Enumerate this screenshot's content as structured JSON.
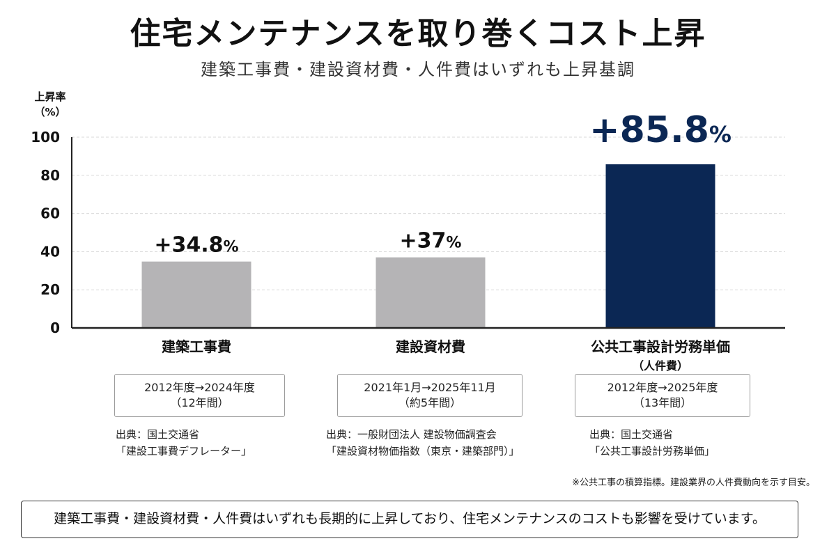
{
  "header": {
    "title": "住宅メンテナンスを取り巻くコスト上昇",
    "subtitle": "建築工事費・建設資材費・人件費はいずれも上昇基調"
  },
  "chart_data": {
    "type": "bar",
    "ylabel_line1": "上昇率",
    "ylabel_line2": "（%）",
    "ylim": [
      0,
      100
    ],
    "yticks": [
      0,
      20,
      40,
      60,
      80,
      100
    ],
    "grid": true,
    "categories": [
      "建築工事費",
      "建設資材費",
      "公共工事設計労務単価"
    ],
    "values": [
      34.8,
      37,
      85.8
    ],
    "value_labels": [
      {
        "number": "+34.8",
        "unit": "%"
      },
      {
        "number": "+37",
        "unit": "%"
      },
      {
        "number": "+85.8",
        "unit": "%"
      }
    ],
    "colors": {
      "bars": [
        "#b5b4b6",
        "#b5b4b6",
        "#0b2754"
      ],
      "label_highlight": "#0b2754",
      "label_default": "#111111"
    }
  },
  "details": [
    {
      "subcategory": "",
      "period_line1": "2012年度→2024年度",
      "period_line2": "（12年間）",
      "source_line1": "出典：国土交通省",
      "source_line2": "「建設工事費デフレーター」"
    },
    {
      "subcategory": "",
      "period_line1": "2021年1月→2025年11月",
      "period_line2": "（約5年間）",
      "source_line1": "出典：一般財団法人 建設物価調査会",
      "source_line2": "「建設資材物価指数（東京・建築部門）」"
    },
    {
      "subcategory": "（人件費）",
      "period_line1": "2012年度→2025年度",
      "period_line2": "（13年間）",
      "source_line1": "出典：国土交通省",
      "source_line2": "「公共工事設計労務単価」"
    }
  ],
  "footnote": "※公共工事の積算指標。建設業界の人件費動向を示す目安。",
  "summary": "建築工事費・建設資材費・人件費はいずれも長期的に上昇しており、住宅メンテナンスのコストも影響を受けています。"
}
